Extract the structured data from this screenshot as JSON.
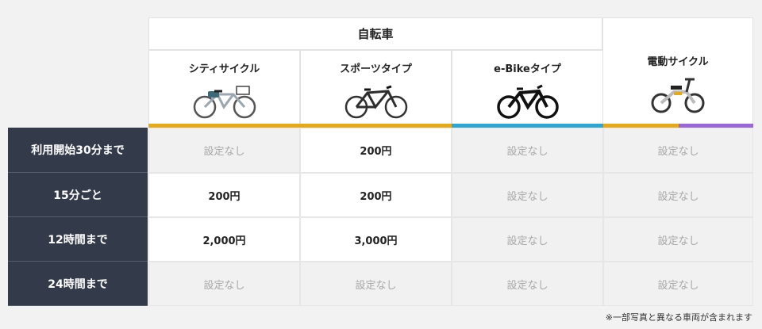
{
  "table": {
    "group_header": "自転車",
    "columns": [
      {
        "label": "シティサイクル",
        "icon": "city-bike-icon",
        "accent": "#e8a916"
      },
      {
        "label": "スポーツタイプ",
        "icon": "sports-bike-icon",
        "accent": "#e8a916"
      },
      {
        "label": "e-Bikeタイプ",
        "icon": "ebike-icon",
        "accent": "#2aa7d6"
      },
      {
        "label": "電動サイクル",
        "icon": "electric-cycle-icon",
        "accent": "#e8a916",
        "accent2": "#9a66d9"
      }
    ],
    "rows": [
      {
        "label": "利用開始30分まで",
        "cells": [
          "設定なし",
          "200円",
          "設定なし",
          "設定なし"
        ]
      },
      {
        "label": "15分ごと",
        "cells": [
          "200円",
          "200円",
          "設定なし",
          "設定なし"
        ]
      },
      {
        "label": "12時間まで",
        "cells": [
          "2,000円",
          "3,000円",
          "設定なし",
          "設定なし"
        ]
      },
      {
        "label": "24時間まで",
        "cells": [
          "設定なし",
          "設定なし",
          "設定なし",
          "設定なし"
        ]
      }
    ]
  },
  "footnote": "※一部写真と異なる車両が含まれます"
}
